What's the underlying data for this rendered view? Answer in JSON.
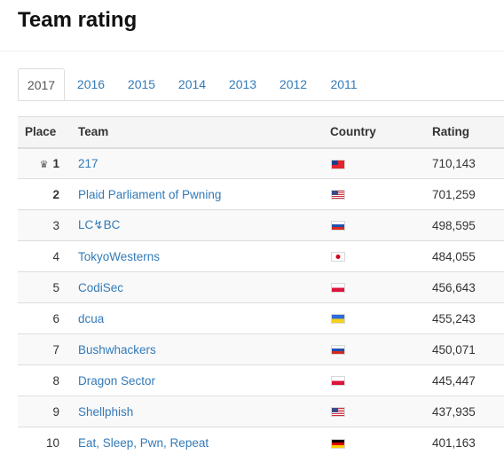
{
  "page": {
    "title": "Team rating"
  },
  "tabs": [
    "2017",
    "2016",
    "2015",
    "2014",
    "2013",
    "2012",
    "2011"
  ],
  "active_tab": "2017",
  "table": {
    "headers": {
      "place": "Place",
      "team": "Team",
      "country": "Country",
      "rating": "Rating"
    },
    "rows": [
      {
        "place": "1",
        "team": "217",
        "country_flag": "tw",
        "rating": "710,143"
      },
      {
        "place": "2",
        "team": "Plaid Parliament of Pwning",
        "country_flag": "us",
        "rating": "701,259"
      },
      {
        "place": "3",
        "team": "LC↯BC",
        "country_flag": "ru",
        "rating": "498,595"
      },
      {
        "place": "4",
        "team": "TokyoWesterns",
        "country_flag": "jp",
        "rating": "484,055"
      },
      {
        "place": "5",
        "team": "CodiSec",
        "country_flag": "pl",
        "rating": "456,643"
      },
      {
        "place": "6",
        "team": "dcua",
        "country_flag": "ua",
        "rating": "455,243"
      },
      {
        "place": "7",
        "team": "Bushwhackers",
        "country_flag": "ru",
        "rating": "450,071"
      },
      {
        "place": "8",
        "team": "Dragon Sector",
        "country_flag": "pl",
        "rating": "445,447"
      },
      {
        "place": "9",
        "team": "Shellphish",
        "country_flag": "us",
        "rating": "437,935"
      },
      {
        "place": "10",
        "team": "Eat, Sleep, Pwn, Repeat",
        "country_flag": "de",
        "rating": "401,163"
      }
    ]
  },
  "icons": {
    "first_place": "crown-icon"
  },
  "colors": {
    "link": "#337ab7",
    "header_bg": "#f5f5f5",
    "stripe_bg": "#f9f9f9",
    "border": "#dddddd"
  }
}
